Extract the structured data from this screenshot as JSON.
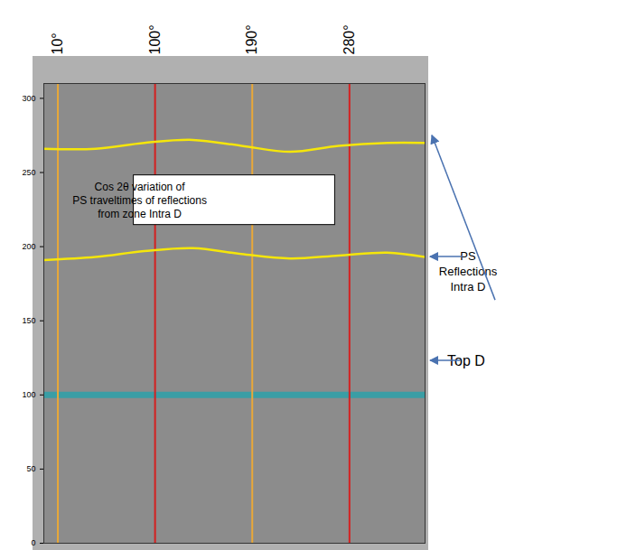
{
  "chart_data": {
    "type": "line",
    "xlim": [
      -3,
      350
    ],
    "xticks": [
      {
        "value": 10,
        "label": "10°"
      },
      {
        "value": 100,
        "label": "100°"
      },
      {
        "value": 190,
        "label": "190°"
      },
      {
        "value": 280,
        "label": "280°"
      }
    ],
    "ylim": [
      0,
      310
    ],
    "yticks": [
      0,
      50,
      100,
      150,
      200,
      250,
      300
    ],
    "vertical_lines": [
      {
        "x": 10,
        "color": "#e8a838"
      },
      {
        "x": 100,
        "color": "#d42020"
      },
      {
        "x": 190,
        "color": "#e8a838"
      },
      {
        "x": 280,
        "color": "#d42020"
      }
    ],
    "horizons": [
      {
        "y": 100,
        "color": "#3a9ea5"
      }
    ],
    "x": [
      -3,
      45,
      90,
      135,
      180,
      225,
      270,
      315,
      350
    ],
    "series": [
      {
        "color": "#f5e60a",
        "values": [
          191,
          193,
          197,
          199,
          195,
          192,
          194,
          196,
          193
        ]
      },
      {
        "color": "#f5e60a",
        "values": [
          266,
          266,
          270,
          272,
          268,
          264,
          268,
          270,
          270
        ]
      }
    ],
    "annotations": [
      {
        "lines": [
          "Top D"
        ],
        "y": 123
      },
      {
        "lines": [
          "PS",
          "Reflections",
          "Intra D"
        ]
      }
    ],
    "note_box": [
      "Cos 2θ variation of",
      "PS traveltimes of reflections",
      "from zone Intra D"
    ]
  }
}
